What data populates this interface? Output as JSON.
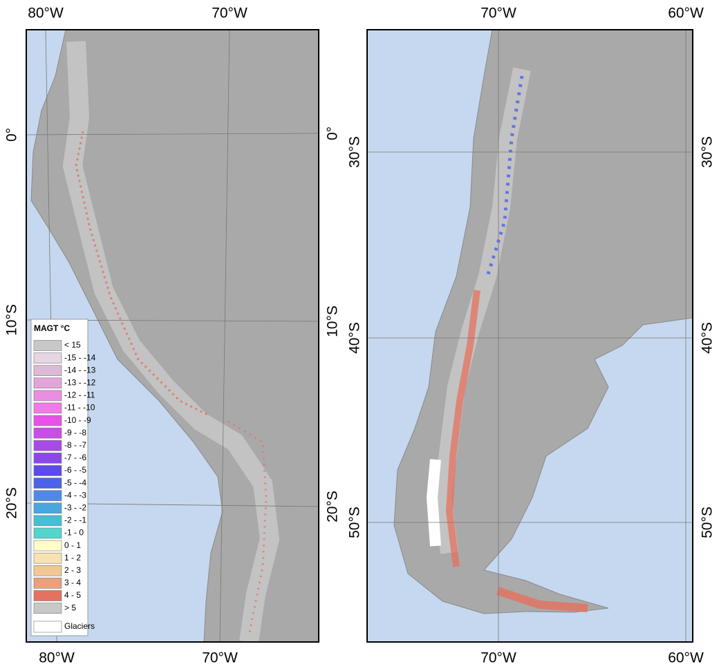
{
  "maps": [
    {
      "top_labels": [
        "80°W",
        "70°W"
      ],
      "bottom_labels": [
        "80°W",
        "70°W"
      ],
      "left_labels": [
        "0°",
        "10°S",
        "20°S"
      ],
      "right_labels": [
        "0°",
        "10°S",
        "20°S"
      ]
    },
    {
      "top_labels": [
        "70°W",
        "60°W"
      ],
      "bottom_labels": [
        "70°W",
        "60°W"
      ],
      "left_labels": [
        "30°S",
        "40°S",
        "50°S"
      ],
      "right_labels": [
        "30°S",
        "40°S",
        "50°S"
      ]
    }
  ],
  "legend": {
    "title": "MAGT °C",
    "items": [
      {
        "label": "< 15",
        "color": "#c8c8c8"
      },
      {
        "label": "-15 - -14",
        "color": "#e6d6e3"
      },
      {
        "label": "-14 - -13",
        "color": "#dcb9d6"
      },
      {
        "label": "-13 - -12",
        "color": "#e3a4da"
      },
      {
        "label": "-12 - -11",
        "color": "#ea8ee0"
      },
      {
        "label": "-11 - -10",
        "color": "#f07ae8"
      },
      {
        "label": "-10 - -9",
        "color": "#e752e6"
      },
      {
        "label": "-9 - -8",
        "color": "#c94ee3"
      },
      {
        "label": "-8 - -7",
        "color": "#a84ae6"
      },
      {
        "label": "-7 - -6",
        "color": "#8a48ea"
      },
      {
        "label": "-6 - -5",
        "color": "#5d49ee"
      },
      {
        "label": "-5 - -4",
        "color": "#4a63ea"
      },
      {
        "label": "-4 - -3",
        "color": "#4d8ae8"
      },
      {
        "label": "-3 - -2",
        "color": "#4aa7de"
      },
      {
        "label": "-2 - -1",
        "color": "#45bfd6"
      },
      {
        "label": "-1 - 0",
        "color": "#52d6cc"
      },
      {
        "label": "0 - 1",
        "color": "#fefec8"
      },
      {
        "label": "1 - 2",
        "color": "#f8e3b0"
      },
      {
        "label": "2 - 3",
        "color": "#f1c893"
      },
      {
        "label": "3 - 4",
        "color": "#ec9f78"
      },
      {
        "label": "4 - 5",
        "color": "#e5715f"
      },
      {
        "label": "> 5",
        "color": "#c8c8c8"
      }
    ],
    "glaciers": "Glaciers"
  }
}
